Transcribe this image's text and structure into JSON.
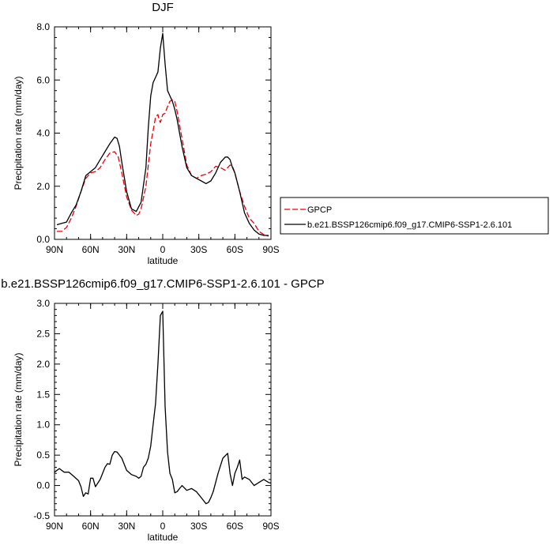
{
  "chart_data": [
    {
      "type": "line",
      "title": "DJF",
      "xlabel": "latitude",
      "ylabel": "Precipitation rate (mm/day)",
      "xticks": [
        90,
        60,
        30,
        0,
        -30,
        -60,
        -90
      ],
      "xtick_labels": [
        "90N",
        "60N",
        "30N",
        "0",
        "30S",
        "60S",
        "90S"
      ],
      "xlim": [
        90,
        -90
      ],
      "ylim": [
        0,
        8
      ],
      "yticks": [
        0,
        2,
        4,
        6,
        8
      ],
      "ytick_labels": [
        "0.0",
        "2.0",
        "4.0",
        "6.0",
        "8.0"
      ],
      "legend_position": "right",
      "series": [
        {
          "name": "GPCP",
          "color": "#e8000b",
          "style": "dashed",
          "x": [
            88,
            84,
            80,
            76,
            72,
            68,
            64,
            60,
            56,
            52,
            48,
            44,
            40,
            37,
            34,
            30,
            26,
            22,
            20,
            18,
            14,
            10,
            6,
            4,
            3,
            2,
            0,
            -2,
            -4,
            -6,
            -8,
            -10,
            -12,
            -14,
            -16,
            -20,
            -24,
            -28,
            -32,
            -36,
            -40,
            -44,
            -48,
            -52,
            -54,
            -56,
            -58,
            -60,
            -64,
            -68,
            -72,
            -76,
            -80,
            -84,
            -88
          ],
          "values": [
            0.3,
            0.3,
            0.45,
            0.8,
            1.25,
            1.8,
            2.3,
            2.5,
            2.55,
            2.7,
            3.0,
            3.25,
            3.3,
            3.1,
            2.5,
            1.6,
            1.1,
            0.9,
            0.95,
            1.15,
            2.0,
            3.6,
            4.6,
            4.7,
            4.5,
            4.4,
            4.7,
            4.75,
            5.0,
            5.2,
            5.25,
            5.2,
            4.8,
            4.3,
            3.8,
            2.8,
            2.4,
            2.3,
            2.4,
            2.45,
            2.55,
            2.75,
            2.7,
            2.6,
            2.7,
            2.8,
            2.75,
            2.5,
            1.8,
            1.25,
            0.8,
            0.6,
            0.3,
            0.18,
            0.12
          ]
        },
        {
          "name": "b.e21.BSSP126cmip6.f09_g17.CMIP6-SSP1-2.6.101",
          "color": "#000000",
          "style": "solid",
          "x": [
            88,
            84,
            80,
            76,
            72,
            68,
            64,
            60,
            56,
            52,
            48,
            44,
            40,
            38,
            36,
            34,
            30,
            26,
            22,
            18,
            14,
            12,
            10,
            8,
            6,
            4,
            2,
            0,
            -2,
            -4,
            -6,
            -8,
            -10,
            -12,
            -14,
            -16,
            -20,
            -24,
            -28,
            -32,
            -36,
            -40,
            -44,
            -48,
            -52,
            -54,
            -56,
            -58,
            -60,
            -64,
            -68,
            -72,
            -76,
            -80,
            -84,
            -88
          ],
          "values": [
            0.55,
            0.6,
            0.65,
            1.0,
            1.3,
            1.8,
            2.4,
            2.55,
            2.7,
            3.0,
            3.3,
            3.6,
            3.85,
            3.8,
            3.5,
            2.9,
            1.8,
            1.15,
            1.05,
            1.4,
            2.7,
            4.2,
            5.4,
            5.9,
            6.1,
            6.3,
            7.2,
            7.75,
            6.6,
            5.6,
            5.4,
            5.2,
            4.9,
            4.5,
            4.0,
            3.5,
            2.7,
            2.4,
            2.3,
            2.2,
            2.1,
            2.2,
            2.5,
            2.9,
            3.1,
            3.1,
            3.0,
            2.7,
            2.5,
            1.8,
            1.0,
            0.6,
            0.35,
            0.2,
            0.15,
            0.15
          ]
        }
      ]
    },
    {
      "type": "line",
      "title": "b.e21.BSSP126cmip6.f09_g17.CMIP6-SSP1-2.6.101 - GPCP",
      "xlabel": "latitude",
      "ylabel": "Precipitation rate (mm/day)",
      "xticks": [
        90,
        60,
        30,
        0,
        -30,
        -60,
        -90
      ],
      "xtick_labels": [
        "90N",
        "60N",
        "30N",
        "0",
        "30S",
        "60S",
        "90S"
      ],
      "xlim": [
        90,
        -90
      ],
      "ylim": [
        -0.5,
        3.0
      ],
      "yticks": [
        -0.5,
        0,
        0.5,
        1.0,
        1.5,
        2.0,
        2.5,
        3.0
      ],
      "ytick_labels": [
        "-0.5",
        "0.0",
        "0.5",
        "1.0",
        "1.5",
        "2.0",
        "2.5",
        "3.0"
      ],
      "series": [
        {
          "color": "#000000",
          "style": "solid",
          "x": [
            90,
            86,
            82,
            78,
            74,
            70,
            68,
            66,
            64,
            62,
            60,
            58,
            56,
            52,
            48,
            46,
            44,
            42,
            40,
            38,
            36,
            34,
            30,
            26,
            22,
            20,
            18,
            16,
            14,
            12,
            10,
            8,
            6,
            4,
            2,
            0,
            -2,
            -4,
            -6,
            -8,
            -10,
            -12,
            -14,
            -16,
            -20,
            -24,
            -28,
            -32,
            -36,
            -38,
            -40,
            -42,
            -46,
            -50,
            -54,
            -56,
            -58,
            -60,
            -62,
            -64,
            -66,
            -68,
            -72,
            -76,
            -80,
            -84,
            -88,
            -90
          ],
          "values": [
            0.22,
            0.28,
            0.22,
            0.22,
            0.15,
            0.08,
            -0.02,
            -0.18,
            -0.12,
            -0.14,
            0.12,
            0.12,
            -0.02,
            0.1,
            0.3,
            0.36,
            0.35,
            0.5,
            0.56,
            0.55,
            0.5,
            0.45,
            0.25,
            0.18,
            0.15,
            0.12,
            0.15,
            0.3,
            0.35,
            0.45,
            0.65,
            1.0,
            1.35,
            2.0,
            2.8,
            2.87,
            1.3,
            0.55,
            0.2,
            0.1,
            -0.12,
            -0.1,
            -0.05,
            0.0,
            -0.08,
            -0.05,
            -0.1,
            -0.2,
            -0.3,
            -0.28,
            -0.2,
            -0.1,
            0.2,
            0.45,
            0.53,
            0.2,
            0.0,
            0.2,
            0.3,
            0.42,
            0.1,
            0.14,
            0.1,
            0.0,
            0.05,
            0.1,
            0.05,
            0.04
          ]
        }
      ]
    }
  ]
}
